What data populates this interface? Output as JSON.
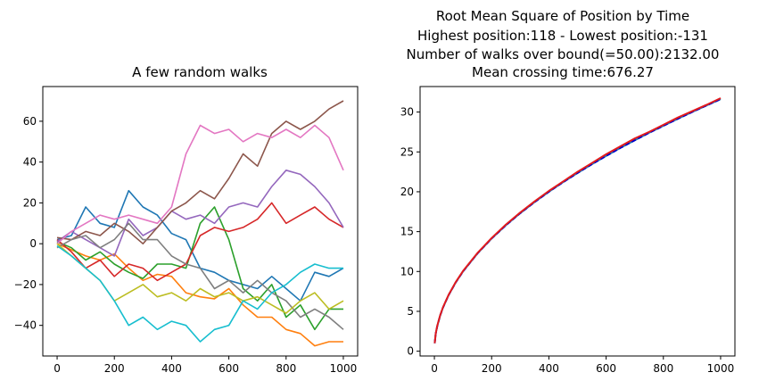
{
  "chart_data": [
    {
      "type": "line",
      "title": "A few random walks",
      "xlim": [
        -50,
        1050
      ],
      "ylim": [
        -55,
        77
      ],
      "xticks": [
        0,
        200,
        400,
        600,
        800,
        1000
      ],
      "yticks": [
        -40,
        -20,
        0,
        20,
        40,
        60
      ],
      "xtick_labels": [
        "0",
        "200",
        "400",
        "600",
        "800",
        "1000"
      ],
      "ytick_labels": [
        "−40",
        "−20",
        "0",
        "20",
        "40",
        "60"
      ],
      "series": [
        {
          "color": "#1f77b4",
          "x": [
            0,
            50,
            100,
            150,
            200,
            250,
            300,
            350,
            400,
            450,
            500,
            550,
            600,
            650,
            700,
            750,
            800,
            850,
            900,
            950,
            1000
          ],
          "y": [
            2,
            4,
            18,
            10,
            8,
            26,
            18,
            14,
            5,
            2,
            -12,
            -14,
            -18,
            -20,
            -22,
            -16,
            -22,
            -28,
            -14,
            -16,
            -12
          ]
        },
        {
          "color": "#ff7f0e",
          "x": [
            0,
            50,
            100,
            150,
            200,
            250,
            300,
            350,
            400,
            450,
            500,
            550,
            600,
            650,
            700,
            750,
            800,
            850,
            900,
            950,
            1000
          ],
          "y": [
            0,
            -3,
            -6,
            -8,
            -5,
            -12,
            -18,
            -15,
            -16,
            -24,
            -26,
            -27,
            -22,
            -30,
            -36,
            -36,
            -42,
            -44,
            -50,
            -48,
            -48
          ]
        },
        {
          "color": "#2ca02c",
          "x": [
            0,
            50,
            100,
            150,
            200,
            250,
            300,
            350,
            400,
            450,
            500,
            550,
            600,
            650,
            700,
            750,
            800,
            850,
            900,
            950,
            1000
          ],
          "y": [
            1,
            -2,
            -8,
            -4,
            -10,
            -14,
            -17,
            -10,
            -10,
            -12,
            10,
            18,
            2,
            -22,
            -28,
            -20,
            -36,
            -30,
            -42,
            -32,
            -32
          ]
        },
        {
          "color": "#d62728",
          "x": [
            0,
            50,
            100,
            150,
            200,
            250,
            300,
            350,
            400,
            450,
            500,
            550,
            600,
            650,
            700,
            750,
            800,
            850,
            900,
            950,
            1000
          ],
          "y": [
            2,
            -4,
            -12,
            -8,
            -16,
            -10,
            -12,
            -18,
            -14,
            -10,
            4,
            8,
            6,
            8,
            12,
            20,
            10,
            14,
            18,
            12,
            8
          ]
        },
        {
          "color": "#9467bd",
          "x": [
            0,
            50,
            100,
            150,
            200,
            250,
            300,
            350,
            400,
            450,
            500,
            550,
            600,
            650,
            700,
            750,
            800,
            850,
            900,
            950,
            1000
          ],
          "y": [
            1,
            6,
            2,
            -2,
            -6,
            12,
            4,
            8,
            16,
            12,
            14,
            10,
            18,
            20,
            18,
            28,
            36,
            34,
            28,
            20,
            8
          ]
        },
        {
          "color": "#8c564b",
          "x": [
            0,
            50,
            100,
            150,
            200,
            250,
            300,
            350,
            400,
            450,
            500,
            550,
            600,
            650,
            700,
            750,
            800,
            850,
            900,
            950,
            1000
          ],
          "y": [
            3,
            2,
            6,
            4,
            10,
            6,
            0,
            8,
            16,
            20,
            26,
            22,
            32,
            44,
            38,
            54,
            60,
            56,
            60,
            66,
            70
          ]
        },
        {
          "color": "#e377c2",
          "x": [
            0,
            50,
            100,
            150,
            200,
            250,
            300,
            350,
            400,
            450,
            500,
            550,
            600,
            650,
            700,
            750,
            800,
            850,
            900,
            950,
            1000
          ],
          "y": [
            0,
            6,
            10,
            14,
            12,
            14,
            12,
            10,
            18,
            44,
            58,
            54,
            56,
            50,
            54,
            52,
            56,
            52,
            58,
            52,
            36
          ]
        },
        {
          "color": "#7f7f7f",
          "x": [
            0,
            50,
            100,
            150,
            200,
            250,
            300,
            350,
            400,
            450,
            500,
            550,
            600,
            650,
            700,
            750,
            800,
            850,
            900,
            950,
            1000
          ],
          "y": [
            -2,
            2,
            4,
            -2,
            2,
            10,
            2,
            2,
            -6,
            -10,
            -12,
            -22,
            -18,
            -24,
            -18,
            -24,
            -28,
            -36,
            -32,
            -36,
            -42
          ]
        },
        {
          "color": "#bcbd22",
          "x": [
            0,
            50,
            100,
            150,
            200,
            250,
            300,
            350,
            400,
            450,
            500,
            550,
            600,
            650,
            700,
            750,
            800,
            850,
            900,
            950,
            1000
          ],
          "y": [
            0,
            -6,
            -12,
            -18,
            -28,
            -24,
            -20,
            -26,
            -24,
            -28,
            -22,
            -26,
            -24,
            -28,
            -26,
            -30,
            -34,
            -28,
            -24,
            -32,
            -28
          ]
        },
        {
          "color": "#17becf",
          "x": [
            0,
            50,
            100,
            150,
            200,
            250,
            300,
            350,
            400,
            450,
            500,
            550,
            600,
            650,
            700,
            750,
            800,
            850,
            900,
            950,
            1000
          ],
          "y": [
            -1,
            -6,
            -12,
            -18,
            -28,
            -40,
            -36,
            -42,
            -38,
            -40,
            -48,
            -42,
            -40,
            -28,
            -32,
            -24,
            -20,
            -14,
            -10,
            -12,
            -12
          ]
        }
      ]
    },
    {
      "type": "line",
      "title": "Root Mean Square of Position by Time",
      "subtitle_lines": [
        "Highest position:118 - Lowest position:-131",
        "Number of walks over bound(=50.00):2132.00",
        "Mean crossing time:676.27"
      ],
      "xlim": [
        -50,
        1050
      ],
      "ylim": [
        -0.6,
        33.2
      ],
      "xticks": [
        0,
        200,
        400,
        600,
        800,
        1000
      ],
      "yticks": [
        0,
        5,
        10,
        15,
        20,
        25,
        30
      ],
      "xtick_labels": [
        "0",
        "200",
        "400",
        "600",
        "800",
        "1000"
      ],
      "ytick_labels": [
        "0",
        "5",
        "10",
        "15",
        "20",
        "25",
        "30"
      ],
      "series": [
        {
          "color": "#1f77b4",
          "style": "solid",
          "x": [
            1,
            5,
            10,
            20,
            30,
            50,
            75,
            100,
            150,
            200,
            250,
            300,
            350,
            400,
            450,
            500,
            550,
            600,
            650,
            700,
            750,
            800,
            850,
            900,
            950,
            1000
          ],
          "y": [
            1.0,
            2.24,
            3.16,
            4.47,
            5.48,
            7.07,
            8.66,
            10.0,
            12.25,
            14.14,
            15.81,
            17.32,
            18.71,
            20.0,
            21.21,
            22.36,
            23.45,
            24.49,
            25.5,
            26.46,
            27.39,
            28.28,
            29.15,
            30.0,
            30.82,
            31.62
          ]
        },
        {
          "color": "#0000cd",
          "style": "dashed",
          "x": [
            1,
            5,
            10,
            20,
            30,
            50,
            75,
            100,
            150,
            200,
            250,
            300,
            350,
            400,
            450,
            500,
            550,
            600,
            650,
            700,
            750,
            800,
            850,
            900,
            950,
            1000
          ],
          "y": [
            1.0,
            2.24,
            3.16,
            4.47,
            5.48,
            7.07,
            8.66,
            10.0,
            12.25,
            14.14,
            15.81,
            17.32,
            18.71,
            20.0,
            21.21,
            22.36,
            23.45,
            24.49,
            25.5,
            26.46,
            27.39,
            28.28,
            29.15,
            30.0,
            30.82,
            31.62
          ]
        },
        {
          "color": "#e31a1c",
          "style": "solid",
          "x": [
            1,
            5,
            10,
            20,
            30,
            50,
            75,
            100,
            150,
            200,
            250,
            300,
            350,
            400,
            450,
            500,
            550,
            600,
            650,
            700,
            750,
            800,
            850,
            900,
            950,
            1000
          ],
          "y": [
            1.0,
            2.26,
            3.2,
            4.5,
            5.52,
            7.1,
            8.7,
            10.05,
            12.3,
            14.2,
            15.9,
            17.4,
            18.8,
            20.1,
            21.3,
            22.5,
            23.6,
            24.7,
            25.7,
            26.7,
            27.5,
            28.4,
            29.3,
            30.1,
            30.9,
            31.75
          ]
        }
      ]
    }
  ]
}
